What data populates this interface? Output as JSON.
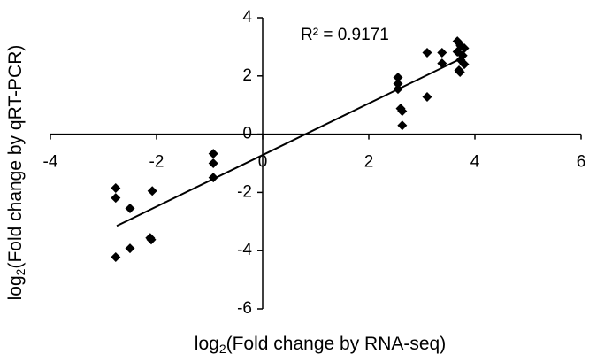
{
  "chart_data": {
    "type": "scatter",
    "annotation": "R² = 0.9171",
    "xlabel_parts": [
      "log",
      "2",
      "(Fold change by RNA-seq)"
    ],
    "ylabel_parts": [
      "log",
      "2",
      "(Fold change by qRT-PCR)"
    ],
    "color": "#000000",
    "x": [
      -2.77,
      -2.77,
      -2.5,
      -2.08,
      -2.12,
      -2.1,
      -2.5,
      -2.77,
      -0.93,
      -0.93,
      -0.93,
      2.55,
      2.55,
      2.55,
      2.6,
      2.63,
      2.63,
      3.1,
      3.1,
      3.38,
      3.38,
      3.67,
      3.73,
      3.8,
      3.67,
      3.77,
      3.73,
      3.8,
      3.7,
      3.72
    ],
    "values": [
      -1.85,
      -2.19,
      -2.55,
      -1.95,
      -3.56,
      -3.62,
      -3.92,
      -4.22,
      -0.67,
      -1.0,
      -1.49,
      1.95,
      1.73,
      1.55,
      0.88,
      0.79,
      0.3,
      2.8,
      1.28,
      2.8,
      2.43,
      3.19,
      3.04,
      2.95,
      2.83,
      2.7,
      2.55,
      2.4,
      2.19,
      2.13
    ],
    "trendline": {
      "x": [
        -2.75,
        3.8
      ],
      "y": [
        -3.15,
        2.65
      ]
    },
    "xlim": [
      -4,
      6
    ],
    "xticks": [
      -4,
      -2,
      0,
      2,
      4,
      6
    ],
    "ylim": [
      -6,
      4
    ],
    "yticks": [
      -6,
      -4,
      -2,
      0,
      2,
      4
    ]
  }
}
